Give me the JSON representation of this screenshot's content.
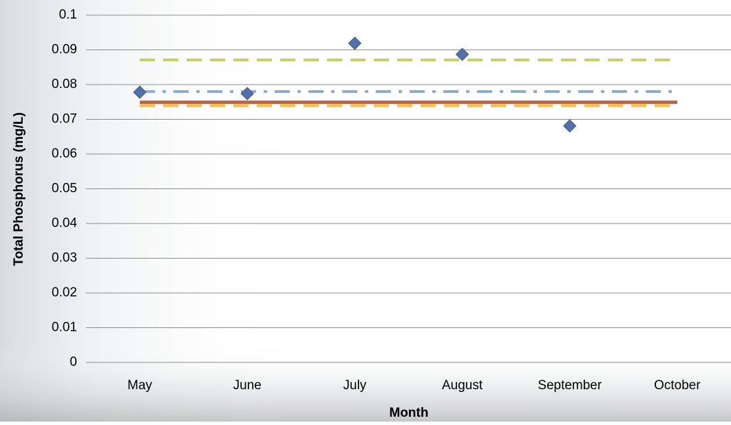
{
  "chart_data": {
    "type": "line",
    "x_label": "Month",
    "y_label": "Total Phosphorus (mg/L)",
    "categories": [
      "May",
      "June",
      "July",
      "August",
      "September",
      "October"
    ],
    "ylim": [
      0,
      0.1
    ],
    "yticks": [
      0,
      0.01,
      0.02,
      0.03,
      0.04,
      0.05,
      0.06,
      0.07,
      0.08,
      0.09,
      0.1
    ],
    "grid": true,
    "series": [
      {
        "type": "line",
        "color": "#c3d069",
        "dash": "dashed",
        "values": [
          0.0871,
          0.0871,
          0.0871,
          0.0871,
          0.0871,
          0.0871
        ]
      },
      {
        "type": "line",
        "color": "#8eaacb",
        "dash": "dashdot",
        "values": [
          0.078,
          0.078,
          0.078,
          0.078,
          0.078,
          0.078
        ]
      },
      {
        "type": "line",
        "color": "#f5c048",
        "dash": "dashed",
        "values": [
          0.0739,
          0.0739,
          0.0739,
          0.0739,
          0.0739,
          0.0739
        ]
      },
      {
        "type": "line",
        "color": "#b4654a",
        "dash": "solid",
        "values": [
          0.0749,
          0.0749,
          0.0749,
          0.0749,
          0.0749,
          0.0749
        ]
      },
      {
        "type": "scatter",
        "color": "#5470a8",
        "marker": "diamond",
        "values": [
          0.0778,
          0.0774,
          0.0919,
          0.0887,
          0.0681,
          null
        ]
      }
    ]
  }
}
